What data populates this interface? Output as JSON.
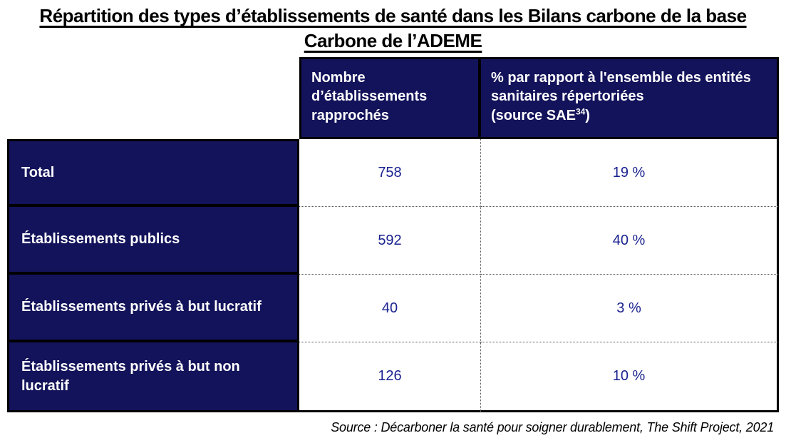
{
  "title": "Répartition des types d’établissements de santé dans les Bilans carbone de la base Carbone de l’ADEME",
  "table": {
    "columns": {
      "count_header": "Nombre d’établissements rapprochés",
      "pct_header_main": "% par rapport à l'ensemble des entités sanitaires répertoriées",
      "pct_header_source_prefix": "(source SAE",
      "pct_header_source_sup": "34",
      "pct_header_source_suffix": ")"
    },
    "rows": [
      {
        "label": "Total",
        "count": "758",
        "pct": "19 %"
      },
      {
        "label": "Établissements publics",
        "count": "592",
        "pct": "40 %"
      },
      {
        "label": "Établissements privés à but lucratif",
        "count": "40",
        "pct": "3 %"
      },
      {
        "label": "Établissements privés à but non lucratif",
        "count": "126",
        "pct": "10 %"
      }
    ]
  },
  "source_note": "Source : Décarboner la santé pour soigner durablement, The Shift Project, 2021",
  "colors": {
    "cell_navy": "#13135B",
    "value_blue": "#1B2390",
    "border_black": "#000000",
    "dotted_gray": "#555555"
  }
}
